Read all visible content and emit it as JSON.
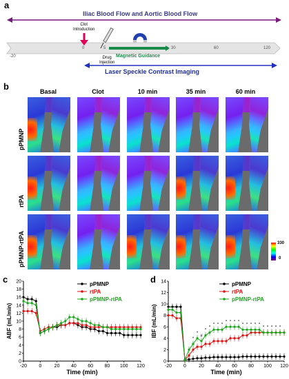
{
  "panel_labels": {
    "a": "a",
    "b": "b",
    "c": "c",
    "d": "d"
  },
  "timeline": {
    "top_label": "Iliac Blood Flow and Aortic Blood Flow",
    "clot_label_line1": "Clot",
    "clot_label_line2": "Introduction",
    "drug_label_line1": "Drug",
    "drug_label_line2": "Injection",
    "magnetic_label": "Magnetic Guidance",
    "bottom_label": "Laser Speckle Contrast Imaging",
    "ticks": [
      "-20",
      "0",
      "5",
      "30",
      "60",
      "120"
    ],
    "colors": {
      "top_arrow": "#7a1a7a",
      "clot_arrow": "#e0005a",
      "magnet": "#1a8a4a",
      "bottom_arrow": "#2030c0"
    }
  },
  "images": {
    "columns": [
      "Basal",
      "Clot",
      "10 min",
      "35 min",
      "60 min"
    ],
    "rows": [
      "pPMNP",
      "rtPA",
      "pPMNP-rtPA"
    ],
    "scale_max": "330",
    "scale_min": "0"
  },
  "chart_data": [
    {
      "type": "line",
      "panel": "c",
      "xlabel": "Time (min)",
      "ylabel": "ABF (mL/min)",
      "xlim": [
        -20,
        120
      ],
      "ylim": [
        0,
        20
      ],
      "xticks": [
        -20,
        0,
        20,
        40,
        60,
        80,
        100,
        120
      ],
      "yticks": [
        0,
        2,
        4,
        6,
        8,
        10,
        12,
        14,
        16,
        18,
        20
      ],
      "x": [
        -20,
        -15,
        -10,
        -5,
        0,
        5,
        10,
        15,
        20,
        25,
        30,
        35,
        40,
        45,
        50,
        55,
        60,
        65,
        70,
        75,
        80,
        85,
        90,
        95,
        100,
        105,
        110,
        115,
        120
      ],
      "series": [
        {
          "name": "pPMNP",
          "color": "#000000",
          "values": [
            16,
            15.5,
            15.5,
            15,
            7,
            7.5,
            8,
            8.5,
            8.5,
            9,
            9,
            9.5,
            9.5,
            9,
            8.5,
            8.5,
            8,
            8,
            7.5,
            7.5,
            7,
            7,
            7,
            7,
            6.5,
            6.5,
            6.5,
            6.5,
            6.5
          ]
        },
        {
          "name": "rtPA",
          "color": "#e01010",
          "values": [
            12.5,
            12.5,
            12.5,
            12,
            7.5,
            8,
            8.5,
            8.5,
            9,
            9,
            9,
            9.5,
            9.5,
            9.5,
            9,
            9,
            8.5,
            8.5,
            8.5,
            8.5,
            8.5,
            8.5,
            8.5,
            8.5,
            8.5,
            8.5,
            8.5,
            8.5,
            8.5
          ]
        },
        {
          "name": "pPMNP-rtPA",
          "color": "#1aa81a",
          "values": [
            15,
            14.5,
            14.5,
            14,
            7,
            7.5,
            8,
            8.5,
            9,
            9.5,
            10,
            11,
            11,
            10.5,
            10,
            10,
            9.5,
            9,
            9,
            8.5,
            8.5,
            8,
            8,
            8,
            8,
            8,
            8,
            8,
            8
          ]
        }
      ]
    },
    {
      "type": "line",
      "panel": "d",
      "xlabel": "Time (min)",
      "ylabel": "IBF (mL/min)",
      "xlim": [
        -20,
        120
      ],
      "ylim": [
        0,
        14
      ],
      "xticks": [
        -20,
        0,
        20,
        40,
        60,
        80,
        100,
        120
      ],
      "yticks": [
        0,
        2,
        4,
        6,
        8,
        10,
        12,
        14
      ],
      "x": [
        -20,
        -15,
        -10,
        -5,
        0,
        5,
        10,
        15,
        20,
        25,
        30,
        35,
        40,
        45,
        50,
        55,
        60,
        65,
        70,
        75,
        80,
        85,
        90,
        95,
        100,
        105,
        110,
        115,
        120
      ],
      "series": [
        {
          "name": "pPMNP",
          "color": "#000000",
          "values": [
            9.5,
            9.5,
            9.5,
            9.5,
            0.2,
            0.3,
            0.4,
            0.5,
            0.5,
            0.6,
            0.6,
            0.7,
            0.7,
            0.7,
            0.7,
            0.7,
            0.7,
            0.7,
            0.8,
            0.8,
            0.8,
            0.8,
            0.8,
            0.8,
            0.8,
            0.8,
            0.8,
            0.8,
            0.8
          ]
        },
        {
          "name": "rtPA",
          "color": "#e01010",
          "values": [
            8,
            8,
            7.5,
            7.5,
            0.2,
            1,
            2,
            2.5,
            2.5,
            3,
            3,
            3.5,
            3.5,
            3.5,
            3.5,
            4,
            4,
            4,
            4.5,
            4.5,
            5,
            5,
            5,
            5,
            5,
            5,
            5,
            5,
            5
          ]
        },
        {
          "name": "pPMNP-rtPA",
          "color": "#1aa81a",
          "values": [
            9,
            9,
            8.5,
            8.5,
            0.2,
            2,
            3,
            4,
            3.5,
            4.5,
            5,
            5.5,
            5.5,
            5.5,
            6,
            6,
            6,
            6,
            5.5,
            5.5,
            5.5,
            5.5,
            5.5,
            5,
            5,
            5,
            5,
            5,
            5
          ]
        }
      ],
      "annotations": [
        "*",
        "*",
        "#",
        "*",
        "*",
        "*",
        "*",
        "*",
        "*",
        "*",
        "*",
        "*",
        "*",
        "*",
        "*",
        "*",
        "*",
        "*",
        "*",
        "*",
        "*",
        "*"
      ]
    }
  ]
}
